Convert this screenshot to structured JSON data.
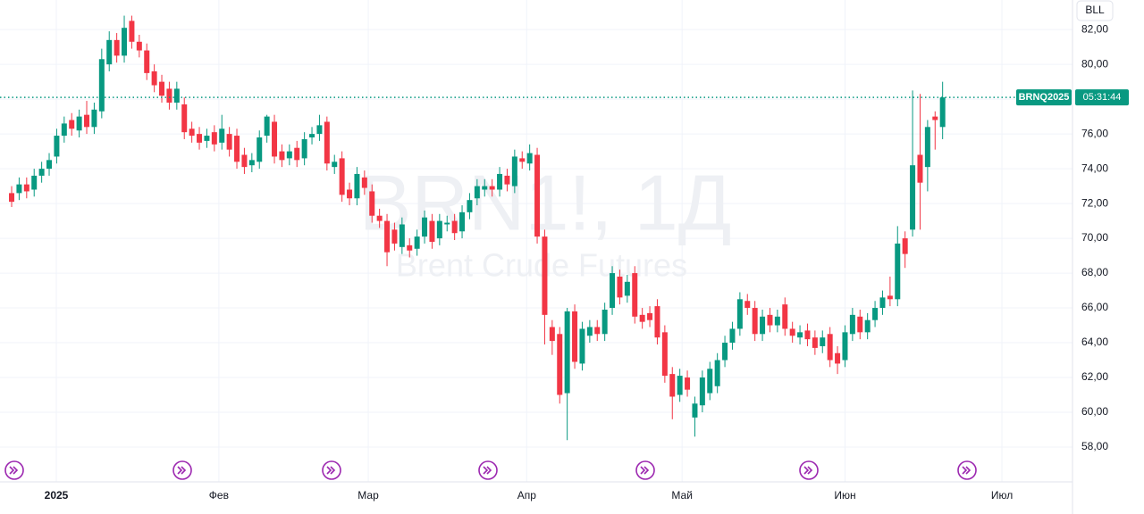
{
  "chart_data": {
    "type": "candlestick",
    "watermark": "BRN1!, 1Д",
    "watermark_subtitle": "Brent Crude Futures",
    "button": "BLL",
    "price_line": {
      "symbol": "BRNQ2025",
      "countdown": "05:31:44",
      "color": "#089981"
    },
    "up_color": "#089981",
    "down_color": "#f23645",
    "grid": true,
    "xlim": [
      -1.55,
      141.3
    ],
    "xticks": [
      {
        "value": 5.95,
        "label": "2025"
      },
      {
        "value": 27.6,
        "label": "Фев"
      },
      {
        "value": 47.5,
        "label": "Мар"
      },
      {
        "value": 68.6,
        "label": "Апр"
      },
      {
        "value": 89.3,
        "label": "Май"
      },
      {
        "value": 111,
        "label": "Июн"
      },
      {
        "value": 131.9,
        "label": "Июл"
      }
    ],
    "ylim": [
      56.0,
      83.7
    ],
    "yticks": [
      {
        "value": 58,
        "label": "58,00"
      },
      {
        "value": 60,
        "label": "60,00"
      },
      {
        "value": 62,
        "label": "62,00"
      },
      {
        "value": 64,
        "label": "64,00"
      },
      {
        "value": 66,
        "label": "66,00"
      },
      {
        "value": 68,
        "label": "68,00"
      },
      {
        "value": 70,
        "label": "70,00"
      },
      {
        "value": 72,
        "label": "72,00"
      },
      {
        "value": 74,
        "label": "74,00"
      },
      {
        "value": 76,
        "label": "76,00"
      },
      {
        "value": 78,
        "label": "78,00"
      },
      {
        "value": 80,
        "label": "80,00"
      },
      {
        "value": 82,
        "label": "82,00"
      }
    ],
    "open": [
      72.6,
      72.6,
      73.1,
      72.8,
      73.6,
      74.0,
      74.7,
      75.9,
      76.8,
      76.2,
      77.1,
      76.4,
      77.3,
      80.0,
      81.4,
      80.5,
      82.5,
      81.3,
      80.8,
      79.6,
      79.0,
      78.6,
      77.8,
      77.7,
      76.3,
      76.0,
      75.6,
      76.1,
      75.5,
      76.0,
      75.9,
      74.8,
      74.2,
      74.4,
      75.9,
      76.7,
      75.0,
      74.6,
      75.2,
      74.6,
      75.8,
      76.0,
      76.7,
      74.1,
      74.6,
      72.8,
      72.3,
      73.5,
      72.7,
      71.3,
      71.0,
      70.5,
      69.5,
      69.6,
      69.4,
      70.1,
      71.0,
      70.0,
      70.8,
      71.0,
      70.4,
      71.5,
      72.3,
      72.8,
      73.0,
      72.8,
      73.6,
      73.0,
      74.6,
      74.3,
      74.8,
      70.1,
      64.9,
      64.5,
      61.1,
      65.8,
      62.8,
      64.4,
      64.9,
      64.5,
      66.0,
      67.8,
      66.7,
      68.0,
      65.6,
      65.7,
      66.1,
      64.6,
      62.2,
      61.0,
      62.0,
      59.7,
      60.4,
      61.1,
      61.5,
      63.0,
      64.0,
      64.8,
      66.4,
      66.0,
      64.5,
      65.6,
      65.0,
      66.2,
      64.8,
      64.3,
      64.7,
      64.3,
      63.8,
      64.5,
      63.4,
      63.0,
      64.5,
      65.5,
      64.6,
      65.3,
      66.0,
      66.7,
      66.5,
      70.0,
      70.5,
      74.8,
      74.1,
      77.0,
      76.4
    ],
    "high": [
      73.0,
      73.5,
      73.5,
      74.0,
      74.4,
      74.9,
      76.3,
      77.0,
      77.2,
      77.4,
      77.9,
      77.8,
      80.9,
      81.9,
      81.8,
      82.8,
      82.8,
      81.7,
      81.2,
      80.0,
      79.4,
      79.0,
      79.0,
      78.1,
      76.7,
      76.4,
      76.3,
      76.5,
      77.1,
      76.4,
      76.3,
      75.2,
      74.9,
      76.2,
      77.1,
      77.1,
      75.4,
      75.4,
      75.6,
      76.1,
      76.4,
      77.1,
      77.0,
      74.8,
      75.0,
      73.2,
      74.1,
      73.9,
      73.1,
      71.7,
      71.4,
      70.9,
      71.2,
      70.0,
      70.5,
      71.6,
      71.4,
      71.4,
      71.3,
      71.4,
      71.9,
      72.6,
      73.4,
      73.4,
      73.4,
      74.1,
      74.0,
      75.1,
      75.0,
      75.4,
      75.2,
      70.5,
      65.3,
      64.9,
      66.0,
      66.2,
      65.2,
      65.3,
      65.3,
      66.3,
      68.4,
      68.2,
      67.9,
      68.4,
      66.0,
      66.1,
      66.5,
      65.0,
      62.6,
      62.5,
      62.4,
      60.9,
      62.4,
      62.9,
      63.4,
      64.4,
      65.2,
      66.9,
      66.8,
      66.4,
      65.9,
      66.0,
      65.9,
      66.6,
      65.2,
      65.0,
      65.1,
      64.7,
      64.7,
      64.9,
      63.8,
      65.0,
      66.0,
      65.9,
      65.7,
      66.4,
      67.0,
      67.8,
      70.7,
      70.4,
      78.5,
      78.3,
      76.8,
      77.3,
      79.0
    ],
    "low": [
      71.8,
      72.2,
      72.3,
      72.4,
      73.2,
      73.6,
      74.3,
      75.5,
      75.9,
      75.8,
      76.0,
      76.0,
      76.9,
      79.6,
      80.1,
      80.1,
      80.9,
      80.4,
      79.1,
      78.4,
      77.8,
      77.4,
      77.4,
      75.7,
      75.5,
      75.1,
      75.2,
      75.0,
      75.1,
      74.7,
      74.0,
      73.7,
      73.8,
      74.0,
      75.5,
      74.3,
      74.1,
      74.2,
      74.1,
      74.2,
      75.4,
      75.6,
      73.9,
      73.7,
      72.1,
      71.9,
      71.9,
      72.5,
      70.9,
      70.6,
      68.4,
      69.3,
      69.1,
      68.9,
      69.0,
      69.7,
      69.4,
      69.6,
      70.4,
      69.9,
      70.0,
      71.1,
      71.9,
      72.4,
      72.4,
      72.4,
      72.7,
      72.6,
      74.0,
      73.9,
      69.7,
      63.9,
      63.3,
      60.5,
      58.4,
      62.5,
      62.4,
      64.0,
      64.1,
      64.1,
      65.6,
      66.2,
      66.3,
      65.1,
      64.8,
      64.9,
      63.9,
      61.7,
      59.6,
      60.6,
      60.9,
      58.6,
      60.0,
      60.7,
      61.1,
      62.6,
      63.6,
      64.4,
      65.6,
      64.1,
      64.1,
      64.6,
      64.6,
      64.4,
      64.0,
      63.9,
      63.8,
      63.3,
      63.4,
      62.6,
      62.2,
      62.6,
      64.1,
      64.2,
      64.2,
      64.9,
      65.6,
      66.1,
      66.1,
      68.3,
      70.1,
      70.5,
      72.7,
      75.1,
      75.7
    ],
    "close": [
      72.1,
      73.1,
      72.7,
      73.6,
      74.0,
      74.5,
      75.9,
      76.6,
      76.3,
      77.0,
      76.4,
      77.4,
      80.3,
      81.4,
      80.5,
      82.1,
      81.3,
      80.8,
      79.5,
      78.8,
      78.2,
      77.8,
      78.6,
      76.1,
      75.9,
      75.5,
      75.9,
      75.4,
      76.3,
      75.1,
      74.4,
      74.1,
      74.5,
      75.8,
      77.0,
      74.7,
      74.5,
      75.0,
      74.5,
      75.7,
      76.0,
      76.5,
      74.3,
      74.4,
      72.5,
      72.3,
      73.7,
      72.9,
      71.3,
      71.0,
      69.2,
      69.7,
      70.8,
      69.3,
      70.1,
      71.2,
      69.8,
      71.0,
      70.9,
      70.3,
      71.5,
      72.2,
      73.0,
      73.0,
      72.8,
      73.7,
      73.1,
      74.7,
      74.4,
      74.9,
      70.1,
      65.6,
      64.1,
      61.0,
      65.8,
      62.9,
      64.8,
      64.9,
      64.5,
      65.9,
      68.0,
      66.6,
      67.5,
      65.5,
      65.2,
      65.3,
      64.3,
      62.1,
      60.9,
      62.1,
      61.3,
      60.5,
      62.0,
      62.5,
      63.0,
      64.0,
      64.8,
      66.5,
      66.0,
      64.5,
      65.5,
      65.0,
      65.5,
      64.8,
      64.4,
      64.6,
      64.2,
      63.7,
      64.3,
      63.0,
      62.8,
      64.6,
      65.6,
      64.6,
      65.3,
      66.0,
      66.6,
      66.5,
      69.7,
      69.1,
      74.2,
      73.2,
      76.4,
      76.8,
      78.1
    ]
  }
}
